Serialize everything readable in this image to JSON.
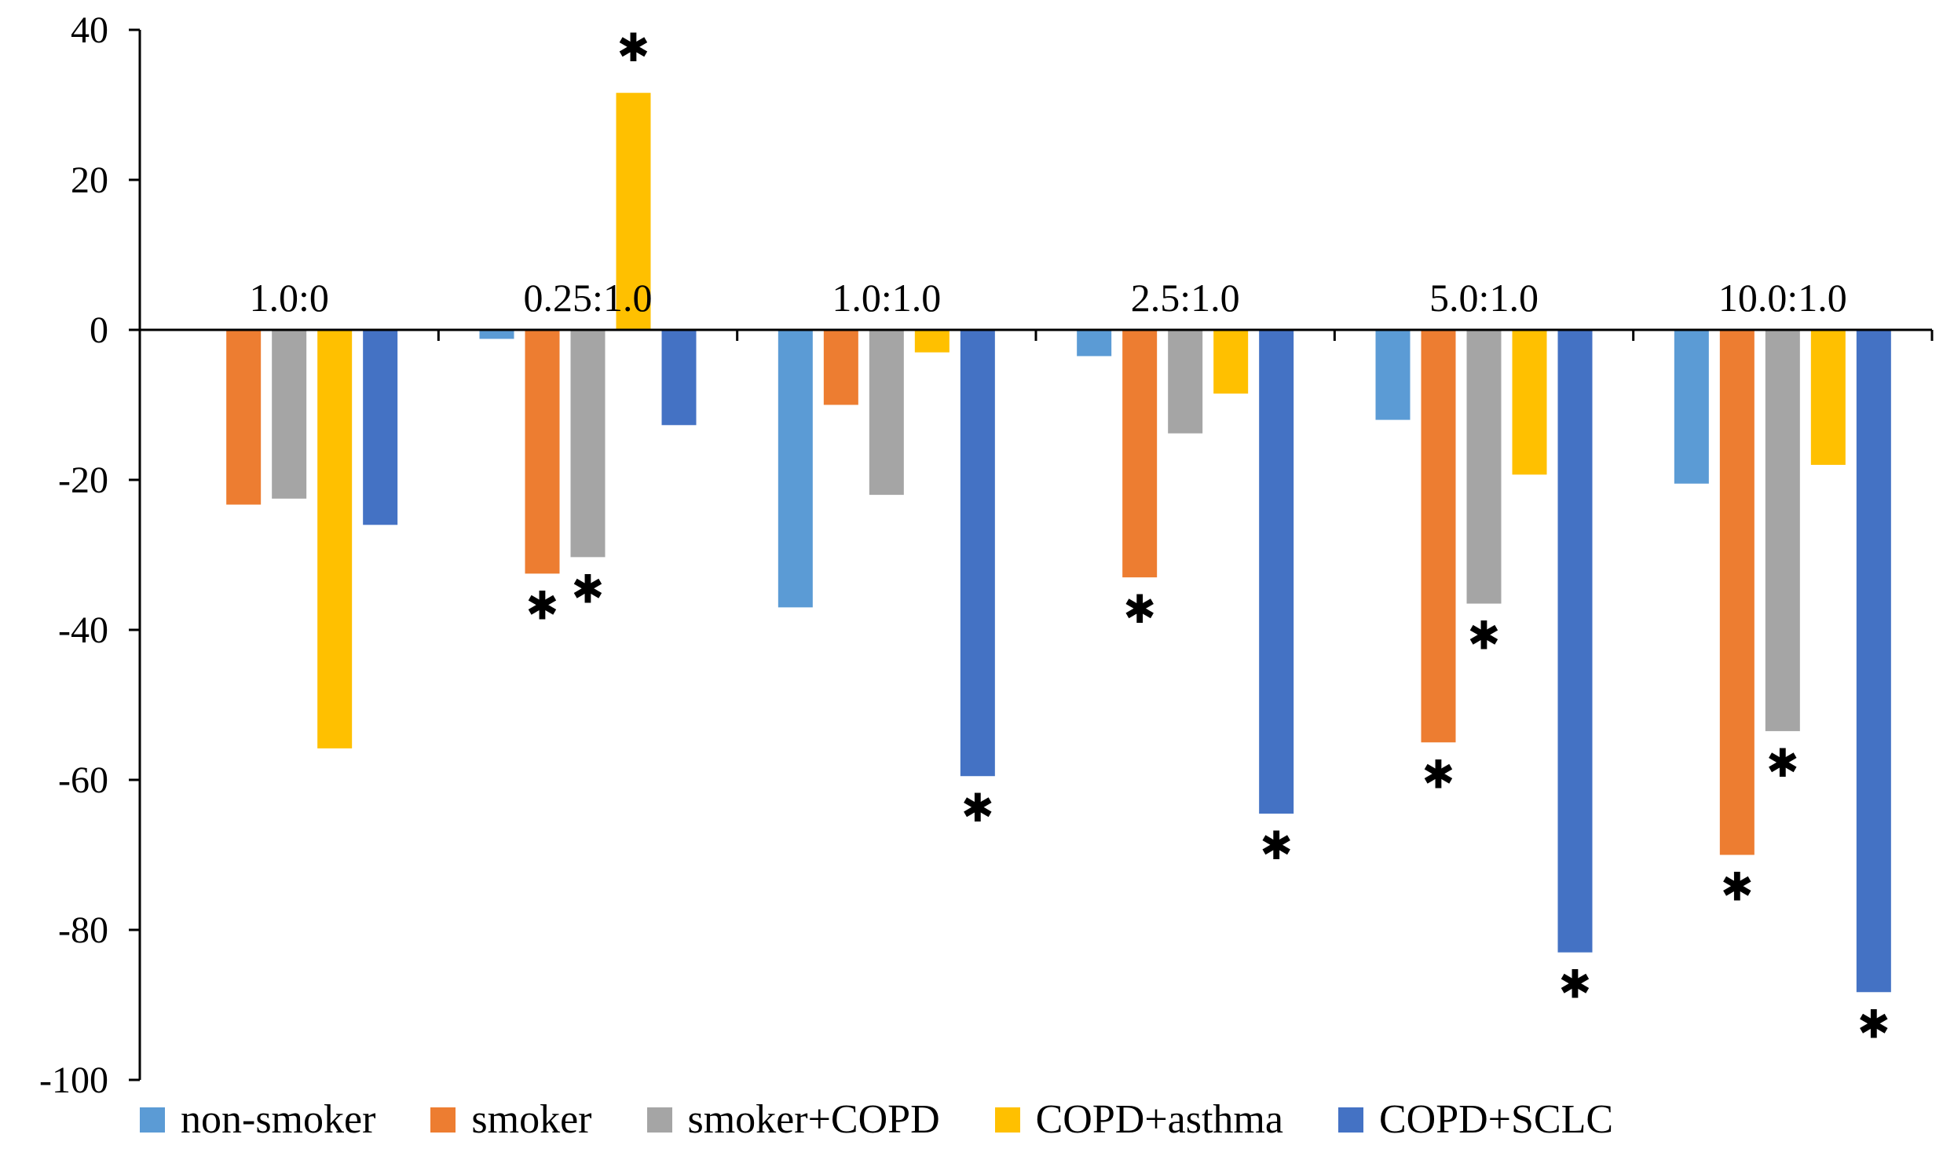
{
  "chart_data": {
    "type": "bar",
    "title": "",
    "xlabel": "",
    "ylabel": "",
    "ylim": [
      -100,
      40
    ],
    "yticks": [
      40,
      20,
      0,
      -20,
      -40,
      -60,
      -80,
      -100
    ],
    "ytick_labels": [
      "40",
      "20",
      "0",
      "-20",
      "-40",
      "-60",
      "-80",
      "-100"
    ],
    "grid": false,
    "legend_position": "bottom",
    "categories": [
      "1.0:0",
      "0.25:1.0",
      "1.0:1.0",
      "2.5:1.0",
      "5.0:1.0",
      "10.0:1.0"
    ],
    "series": [
      {
        "name": "non-smoker",
        "color": "#5B9BD5",
        "values": [
          0,
          -1.2,
          -37,
          -3.5,
          -12,
          -20.5
        ],
        "significant": [
          false,
          false,
          false,
          false,
          false,
          false
        ]
      },
      {
        "name": "smoker",
        "color": "#ED7D31",
        "values": [
          -23.3,
          -32.5,
          -10,
          -33,
          -55,
          -70
        ],
        "significant": [
          false,
          true,
          false,
          true,
          true,
          true
        ]
      },
      {
        "name": "smoker+COPD",
        "color": "#A5A5A5",
        "values": [
          -22.5,
          -30.3,
          -22,
          -13.8,
          -36.5,
          -53.5
        ],
        "significant": [
          false,
          true,
          false,
          false,
          true,
          true
        ]
      },
      {
        "name": "COPD+asthma",
        "color": "#FFC000",
        "values": [
          -55.8,
          31.6,
          -3,
          -8.5,
          -19.3,
          -18
        ],
        "significant": [
          false,
          true,
          false,
          false,
          false,
          false
        ]
      },
      {
        "name": "COPD+SCLC",
        "color": "#4472C4",
        "values": [
          -26,
          -12.7,
          -59.5,
          -64.5,
          -83,
          -88.3
        ],
        "significant": [
          false,
          false,
          true,
          true,
          true,
          true
        ]
      }
    ],
    "significance_marker": "✱"
  }
}
